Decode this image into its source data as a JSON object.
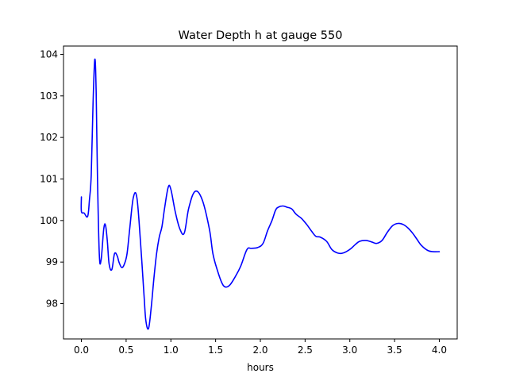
{
  "chart_data": {
    "type": "line",
    "title": "Water Depth h at gauge 550",
    "xlabel": "hours",
    "ylabel": "",
    "xlim": [
      -0.2,
      4.2
    ],
    "ylim": [
      97.15,
      104.2
    ],
    "xticks": [
      0.0,
      0.5,
      1.0,
      1.5,
      2.0,
      2.5,
      3.0,
      3.5,
      4.0
    ],
    "xtick_labels": [
      "0.0",
      "0.5",
      "1.0",
      "1.5",
      "2.0",
      "2.5",
      "3.0",
      "3.5",
      "4.0"
    ],
    "yticks": [
      98,
      99,
      100,
      101,
      102,
      103,
      104
    ],
    "ytick_labels": [
      "98",
      "99",
      "100",
      "101",
      "102",
      "103",
      "104"
    ],
    "grid": false,
    "series": [
      {
        "color": "#0000ff",
        "x": [
          0.0,
          0.0,
          0.03,
          0.07,
          0.09,
          0.11,
          0.13,
          0.15,
          0.165,
          0.18,
          0.2,
          0.22,
          0.25,
          0.27,
          0.29,
          0.31,
          0.34,
          0.37,
          0.4,
          0.42,
          0.45,
          0.48,
          0.51,
          0.54,
          0.58,
          0.62,
          0.66,
          0.7,
          0.72,
          0.75,
          0.78,
          0.81,
          0.84,
          0.87,
          0.9,
          0.93,
          0.97,
          1.0,
          1.05,
          1.1,
          1.15,
          1.2,
          1.27,
          1.35,
          1.43,
          1.47,
          1.52,
          1.57,
          1.61,
          1.66,
          1.72,
          1.78,
          1.85,
          1.9,
          1.97,
          2.03,
          2.08,
          2.13,
          2.17,
          2.2,
          2.25,
          2.3,
          2.35,
          2.4,
          2.46,
          2.52,
          2.57,
          2.62,
          2.67,
          2.74,
          2.8,
          2.86,
          2.91,
          2.96,
          3.01,
          3.06,
          3.11,
          3.18,
          3.25,
          3.3,
          3.36,
          3.42,
          3.48,
          3.54,
          3.6,
          3.65,
          3.7,
          3.75,
          3.8,
          3.87,
          3.93,
          4.0
        ],
        "y": [
          100.57,
          100.22,
          100.18,
          100.1,
          100.5,
          101.1,
          102.8,
          103.88,
          103.1,
          101.0,
          99.2,
          99.05,
          99.8,
          99.88,
          99.5,
          98.95,
          98.82,
          99.2,
          99.15,
          99.0,
          98.87,
          98.95,
          99.2,
          99.8,
          100.55,
          100.55,
          99.5,
          98.2,
          97.6,
          97.4,
          97.9,
          98.6,
          99.2,
          99.6,
          99.85,
          100.3,
          100.8,
          100.75,
          100.2,
          99.8,
          99.7,
          100.3,
          100.7,
          100.5,
          99.8,
          99.2,
          98.8,
          98.5,
          98.4,
          98.45,
          98.65,
          98.9,
          99.3,
          99.33,
          99.35,
          99.45,
          99.75,
          100.0,
          100.25,
          100.32,
          100.35,
          100.32,
          100.28,
          100.15,
          100.05,
          99.9,
          99.75,
          99.62,
          99.6,
          99.5,
          99.3,
          99.22,
          99.21,
          99.25,
          99.32,
          99.42,
          99.5,
          99.52,
          99.48,
          99.45,
          99.52,
          99.72,
          99.88,
          99.93,
          99.9,
          99.82,
          99.7,
          99.55,
          99.4,
          99.28,
          99.25,
          99.25
        ]
      }
    ]
  }
}
